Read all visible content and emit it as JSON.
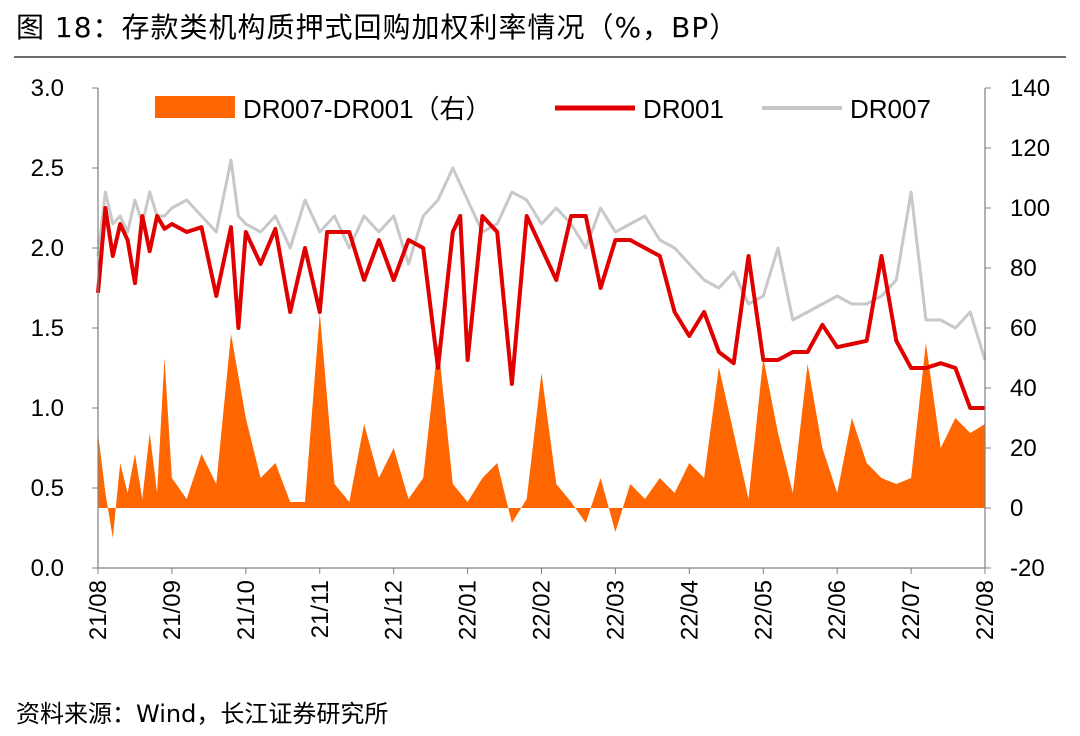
{
  "title": "图 18：存款类机构质押式回购加权利率情况（%，BP）",
  "source": "资料来源：Wind，长江证券研究所",
  "chart_data": {
    "type": "line",
    "ylim_left": [
      0.0,
      3.0
    ],
    "yticks_left": [
      "3.0",
      "2.5",
      "2.0",
      "1.5",
      "1.0",
      "0.5",
      "0.0"
    ],
    "ylim_right": [
      -20,
      140
    ],
    "yticks_right": [
      "140",
      "120",
      "100",
      "80",
      "60",
      "40",
      "20",
      "0",
      "-20"
    ],
    "xticks": [
      "21/08",
      "21/09",
      "21/10",
      "21/11",
      "21/12",
      "22/01",
      "22/02",
      "22/03",
      "22/04",
      "22/05",
      "22/06",
      "22/07",
      "22/08"
    ],
    "legend_position": "top",
    "grid": false,
    "colors": {
      "spread": "#ff6600",
      "dr001": "#e00000",
      "dr007": "#c8c8c8"
    },
    "series": [
      {
        "name": "DR007-DR001（右）",
        "type": "area",
        "axis": "right",
        "x": [
          0,
          0.1,
          0.2,
          0.3,
          0.4,
          0.5,
          0.6,
          0.7,
          0.8,
          0.9,
          1.0,
          1.2,
          1.4,
          1.6,
          1.8,
          2.0,
          2.2,
          2.4,
          2.6,
          2.8,
          3.0,
          3.2,
          3.4,
          3.6,
          3.8,
          4.0,
          4.2,
          4.4,
          4.6,
          4.8,
          5.0,
          5.2,
          5.4,
          5.6,
          5.8,
          6.0,
          6.2,
          6.4,
          6.6,
          6.8,
          7.0,
          7.2,
          7.4,
          7.6,
          7.8,
          8.0,
          8.2,
          8.4,
          8.6,
          8.8,
          9.0,
          9.2,
          9.4,
          9.6,
          9.8,
          10.0,
          10.2,
          10.4,
          10.6,
          10.8,
          11.0,
          11.2,
          11.4,
          11.6,
          11.8,
          12.0
        ],
        "values": [
          25,
          5,
          -10,
          15,
          5,
          18,
          3,
          25,
          5,
          50,
          10,
          3,
          18,
          8,
          58,
          30,
          10,
          15,
          2,
          2,
          65,
          8,
          2,
          28,
          10,
          20,
          3,
          10,
          55,
          8,
          2,
          10,
          15,
          -5,
          3,
          45,
          8,
          2,
          -5,
          10,
          -8,
          8,
          3,
          10,
          5,
          15,
          10,
          47,
          25,
          3,
          50,
          25,
          5,
          48,
          20,
          5,
          30,
          15,
          10,
          8,
          10,
          55,
          20,
          30,
          25,
          28
        ],
        "ylabel_note": "BP"
      },
      {
        "name": "DR001",
        "axis": "left",
        "x": [
          0,
          0.1,
          0.2,
          0.3,
          0.4,
          0.5,
          0.6,
          0.7,
          0.8,
          0.9,
          1.0,
          1.2,
          1.4,
          1.6,
          1.8,
          1.9,
          2.0,
          2.2,
          2.4,
          2.6,
          2.8,
          3.0,
          3.1,
          3.2,
          3.4,
          3.6,
          3.8,
          4.0,
          4.2,
          4.4,
          4.6,
          4.8,
          4.9,
          5.0,
          5.2,
          5.4,
          5.6,
          5.8,
          6.0,
          6.2,
          6.4,
          6.6,
          6.8,
          7.0,
          7.2,
          7.4,
          7.6,
          7.8,
          8.0,
          8.2,
          8.4,
          8.6,
          8.8,
          9.0,
          9.2,
          9.4,
          9.6,
          9.8,
          10.0,
          10.2,
          10.4,
          10.6,
          10.8,
          11.0,
          11.2,
          11.4,
          11.6,
          11.8,
          12.0
        ],
        "values": [
          1.72,
          2.25,
          1.95,
          2.15,
          2.05,
          1.78,
          2.2,
          1.98,
          2.2,
          2.12,
          2.15,
          2.1,
          2.13,
          1.7,
          2.13,
          1.5,
          2.1,
          1.9,
          2.12,
          1.6,
          2.0,
          1.6,
          2.1,
          2.1,
          2.1,
          1.8,
          2.05,
          1.8,
          2.05,
          2.0,
          1.25,
          2.1,
          2.2,
          1.3,
          2.2,
          2.1,
          1.15,
          2.2,
          2.0,
          1.8,
          2.2,
          2.2,
          1.75,
          2.05,
          2.05,
          2.0,
          1.95,
          1.6,
          1.45,
          1.6,
          1.35,
          1.28,
          1.95,
          1.3,
          1.3,
          1.35,
          1.35,
          1.52,
          1.38,
          1.4,
          1.42,
          1.95,
          1.42,
          1.25,
          1.25,
          1.28,
          1.25,
          1.0,
          1.0
        ]
      },
      {
        "name": "DR007",
        "axis": "left",
        "x": [
          0,
          0.1,
          0.2,
          0.3,
          0.4,
          0.5,
          0.6,
          0.7,
          0.8,
          0.9,
          1.0,
          1.2,
          1.4,
          1.6,
          1.8,
          1.9,
          2.0,
          2.2,
          2.4,
          2.6,
          2.8,
          3.0,
          3.2,
          3.4,
          3.6,
          3.8,
          4.0,
          4.2,
          4.4,
          4.6,
          4.8,
          5.0,
          5.2,
          5.4,
          5.6,
          5.8,
          6.0,
          6.2,
          6.4,
          6.6,
          6.8,
          7.0,
          7.2,
          7.4,
          7.6,
          7.8,
          8.0,
          8.2,
          8.4,
          8.6,
          8.8,
          9.0,
          9.2,
          9.4,
          9.6,
          9.8,
          10.0,
          10.2,
          10.4,
          10.6,
          10.8,
          11.0,
          11.2,
          11.4,
          11.6,
          11.8,
          12.0
        ],
        "values": [
          1.95,
          2.35,
          2.15,
          2.2,
          2.1,
          2.3,
          2.15,
          2.35,
          2.2,
          2.2,
          2.25,
          2.3,
          2.2,
          2.1,
          2.55,
          2.2,
          2.15,
          2.1,
          2.2,
          2.0,
          2.3,
          2.1,
          2.2,
          2.0,
          2.2,
          2.1,
          2.2,
          1.9,
          2.2,
          2.3,
          2.5,
          2.3,
          2.1,
          2.15,
          2.35,
          2.3,
          2.15,
          2.25,
          2.15,
          2.0,
          2.25,
          2.1,
          2.15,
          2.2,
          2.05,
          2.0,
          1.9,
          1.8,
          1.75,
          1.85,
          1.65,
          1.7,
          2.0,
          1.55,
          1.6,
          1.65,
          1.7,
          1.65,
          1.65,
          1.7,
          1.8,
          2.35,
          1.55,
          1.55,
          1.5,
          1.6,
          1.3
        ]
      }
    ]
  }
}
